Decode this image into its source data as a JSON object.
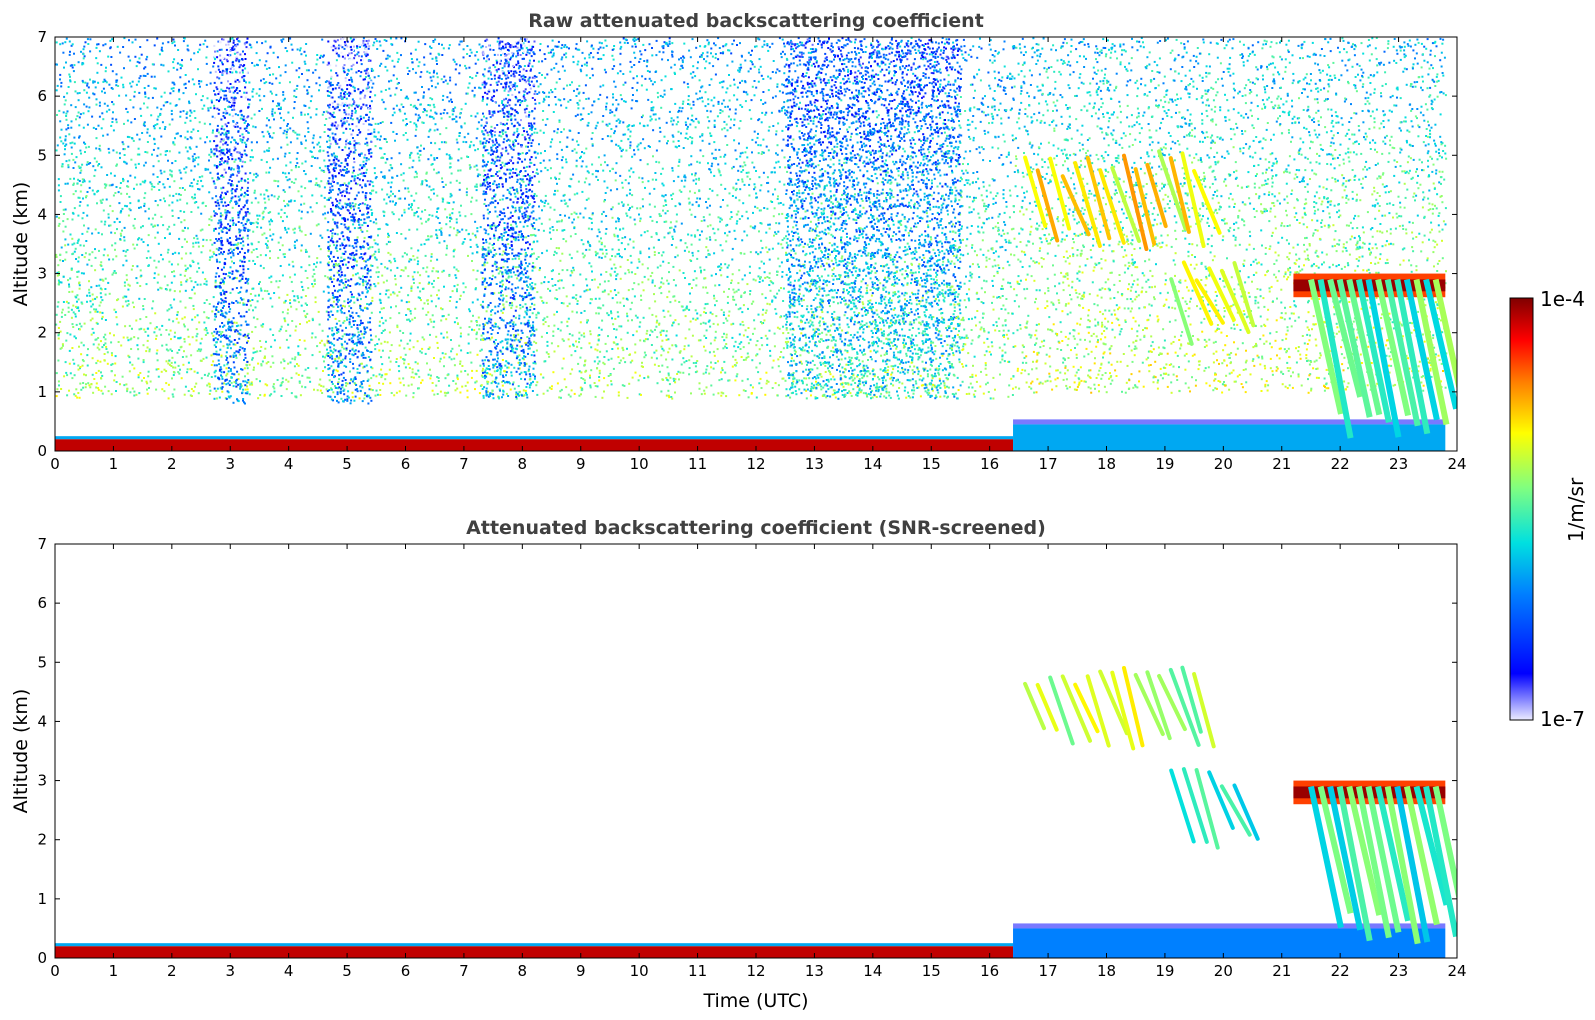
{
  "chart_data": [
    {
      "type": "heatmap",
      "title": "Raw attenuated backscattering coefficient",
      "xlabel": "",
      "ylabel": "Altitude (km)",
      "xlim": [
        0,
        24
      ],
      "ylim": [
        0,
        7
      ],
      "xticks": [
        "0",
        "1",
        "2",
        "3",
        "4",
        "5",
        "6",
        "7",
        "8",
        "9",
        "10",
        "11",
        "12",
        "13",
        "14",
        "15",
        "16",
        "17",
        "18",
        "19",
        "20",
        "21",
        "22",
        "23",
        "24"
      ],
      "yticks": [
        "0",
        "1",
        "2",
        "3",
        "4",
        "5",
        "6",
        "7"
      ],
      "features": [
        {
          "kind": "surface_layer",
          "x": [
            0,
            16.4
          ],
          "alt_km": [
            0,
            0.2
          ],
          "level": 0.95
        },
        {
          "kind": "boundary_layer",
          "x": [
            16.4,
            23.8
          ],
          "alt_km": [
            0,
            0.45
          ],
          "level": 0.35
        },
        {
          "kind": "noise_field",
          "x": [
            0,
            16.4
          ],
          "alt_km": [
            0.9,
            7
          ],
          "level": 0.45
        },
        {
          "kind": "noise_field",
          "x": [
            16.4,
            23.8
          ],
          "alt_km": [
            1.0,
            7
          ],
          "level": 0.5
        },
        {
          "kind": "noise_band",
          "x": [
            2.7,
            3.3
          ],
          "alt_km": [
            0.8,
            7
          ],
          "level": 0.2
        },
        {
          "kind": "noise_band",
          "x": [
            4.65,
            5.4
          ],
          "alt_km": [
            0.8,
            7
          ],
          "level": 0.2
        },
        {
          "kind": "noise_band",
          "x": [
            7.3,
            8.2
          ],
          "alt_km": [
            0.9,
            7
          ],
          "level": 0.22
        },
        {
          "kind": "noise_band",
          "x": [
            12.5,
            15.5
          ],
          "alt_km": [
            0.9,
            7
          ],
          "level": 0.3
        },
        {
          "kind": "cloud_streaks",
          "x": [
            16.5,
            18.0
          ],
          "alt_km": [
            3.4,
            5.0
          ],
          "level": 0.8
        },
        {
          "kind": "cloud_streaks",
          "x": [
            18.0,
            19.6
          ],
          "alt_km": [
            3.4,
            5.1
          ],
          "level": 0.78
        },
        {
          "kind": "cloud_streaks",
          "x": [
            19.0,
            20.3
          ],
          "alt_km": [
            1.8,
            3.2
          ],
          "level": 0.72
        },
        {
          "kind": "cloud_top",
          "x": [
            21.2,
            23.8
          ],
          "alt_km": [
            2.6,
            3.0
          ],
          "level": 0.98
        },
        {
          "kind": "virga",
          "x": [
            21.5,
            23.8
          ],
          "alt_km": [
            0.2,
            2.9
          ],
          "level": 0.6
        }
      ]
    },
    {
      "type": "heatmap",
      "title": "Attenuated backscattering coefficient (SNR-screened)",
      "xlabel": "Time (UTC)",
      "ylabel": "Altitude (km)",
      "xlim": [
        0,
        24
      ],
      "ylim": [
        0,
        7
      ],
      "xticks": [
        "0",
        "1",
        "2",
        "3",
        "4",
        "5",
        "6",
        "7",
        "8",
        "9",
        "10",
        "11",
        "12",
        "13",
        "14",
        "15",
        "16",
        "17",
        "18",
        "19",
        "20",
        "21",
        "22",
        "23",
        "24"
      ],
      "yticks": [
        "0",
        "1",
        "2",
        "3",
        "4",
        "5",
        "6",
        "7"
      ],
      "features": [
        {
          "kind": "surface_layer",
          "x": [
            0,
            16.4
          ],
          "alt_km": [
            0,
            0.2
          ],
          "level": 0.95
        },
        {
          "kind": "boundary_layer",
          "x": [
            16.4,
            23.8
          ],
          "alt_km": [
            0,
            0.5
          ],
          "level": 0.3
        },
        {
          "kind": "cloud_streaks",
          "x": [
            16.5,
            18.0
          ],
          "alt_km": [
            3.5,
            4.9
          ],
          "level": 0.72
        },
        {
          "kind": "cloud_streaks",
          "x": [
            18.0,
            19.6
          ],
          "alt_km": [
            3.5,
            5.0
          ],
          "level": 0.7
        },
        {
          "kind": "cloud_streaks",
          "x": [
            19.0,
            20.3
          ],
          "alt_km": [
            1.8,
            3.2
          ],
          "level": 0.55
        },
        {
          "kind": "cloud_top",
          "x": [
            21.2,
            23.8
          ],
          "alt_km": [
            2.6,
            3.0
          ],
          "level": 0.98
        },
        {
          "kind": "virga",
          "x": [
            21.5,
            23.8
          ],
          "alt_km": [
            0.2,
            2.9
          ],
          "level": 0.58
        }
      ]
    }
  ],
  "colorbar": {
    "label": "1/m/sr",
    "min_label": "1e-7",
    "max_label": "1e-4",
    "colormap": "jet"
  }
}
